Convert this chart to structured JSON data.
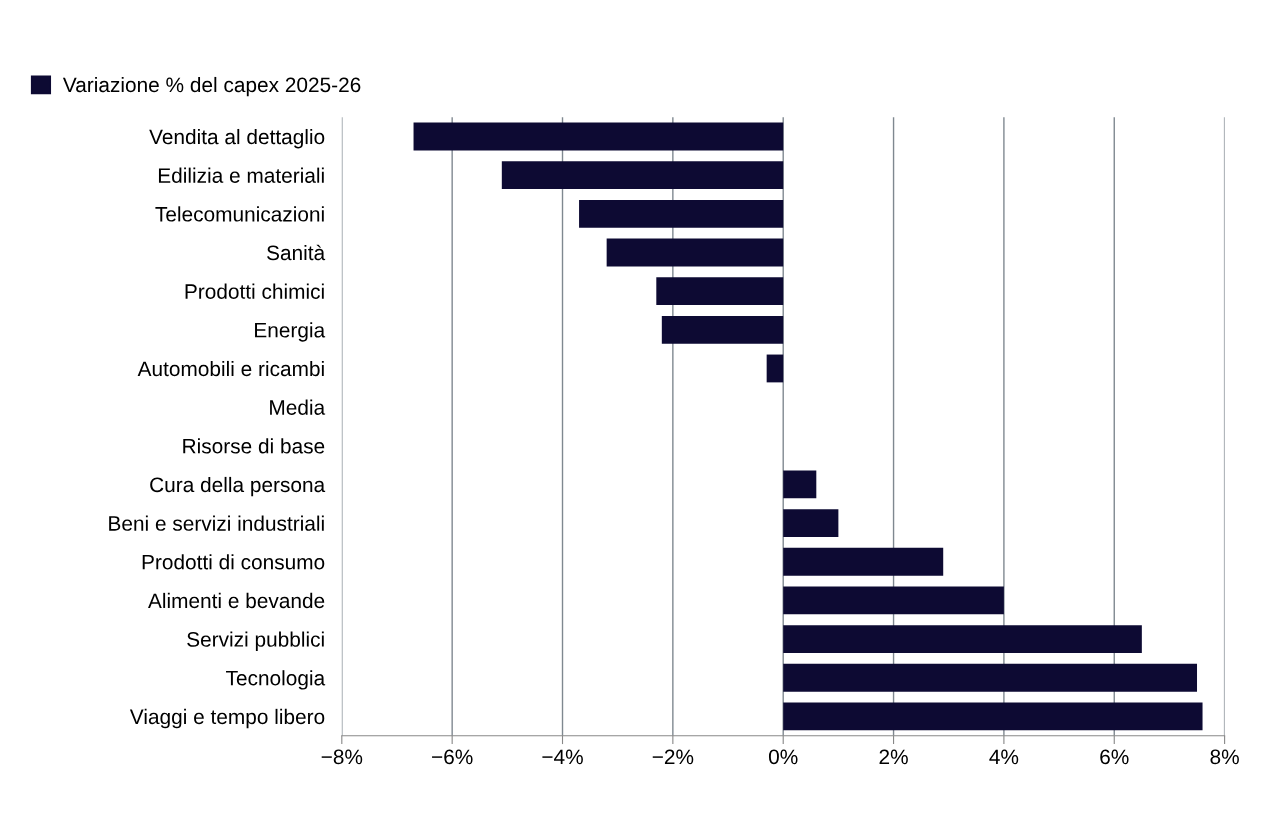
{
  "chart_data": {
    "type": "bar",
    "orientation": "horizontal",
    "categories": [
      "Vendita al dettaglio",
      "Edilizia e materiali",
      "Telecomunicazioni",
      "Sanità",
      "Prodotti chimici",
      "Energia",
      "Automobili e ricambi",
      "Media",
      "Risorse di base",
      "Cura della persona",
      "Beni e servizi industriali",
      "Prodotti di consumo",
      "Alimenti e bevande",
      "Servizi pubblici",
      "Tecnologia",
      "Viaggi e tempo libero"
    ],
    "series": [
      {
        "name": "Variazione % del capex 2025-26",
        "color": "#0d0a33",
        "values": [
          -6.7,
          -5.1,
          -3.7,
          -3.2,
          -2.3,
          -2.2,
          -0.3,
          0,
          0,
          0.6,
          1.0,
          2.9,
          4.0,
          6.5,
          7.5,
          7.6
        ]
      }
    ],
    "xlim": [
      -8,
      8
    ],
    "xticks": [
      {
        "value": -8,
        "label": "−8%"
      },
      {
        "value": -6,
        "label": "−6%"
      },
      {
        "value": -4,
        "label": "−4%"
      },
      {
        "value": -2,
        "label": "−2%"
      },
      {
        "value": 0,
        "label": "0%"
      },
      {
        "value": 2,
        "label": "2%"
      },
      {
        "value": 4,
        "label": "4%"
      },
      {
        "value": 6,
        "label": "6%"
      },
      {
        "value": 8,
        "label": "8%"
      }
    ],
    "grid": "x",
    "legend": "top left"
  }
}
